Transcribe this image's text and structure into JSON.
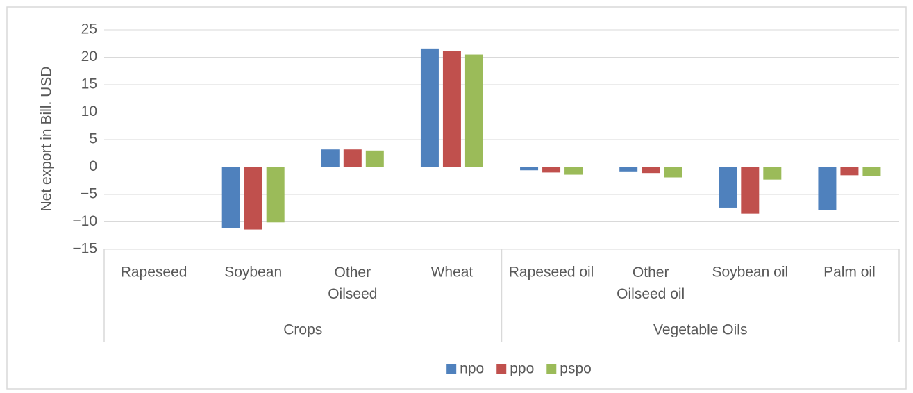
{
  "chart_data": {
    "type": "bar",
    "y_label": "Net export in Bill. USD",
    "groups": [
      {
        "name": "Crops",
        "categories": [
          "Rapeseed",
          "Soybean",
          "Other Oilseed",
          "Wheat"
        ]
      },
      {
        "name": "Vegetable Oils",
        "categories": [
          "Rapeseed oil",
          "Other Oilseed oil",
          "Soybean oil",
          "Palm oil"
        ]
      }
    ],
    "series": [
      {
        "name": "npo",
        "color": "#4f81bd",
        "values": [
          0,
          -11.2,
          3.2,
          21.6,
          -0.6,
          -0.8,
          -7.4,
          -7.8
        ]
      },
      {
        "name": "ppo",
        "color": "#c0504d",
        "values": [
          0,
          -11.4,
          3.2,
          21.2,
          -1.0,
          -1.1,
          -8.5,
          -1.5
        ]
      },
      {
        "name": "pspo",
        "color": "#9bbb59",
        "values": [
          0,
          -10.1,
          3.0,
          20.5,
          -1.4,
          -1.9,
          -2.3,
          -1.6
        ]
      }
    ],
    "ylim": [
      -15,
      25
    ],
    "yticks": [
      {
        "value": -15,
        "label": "−15"
      },
      {
        "value": -10,
        "label": "−10"
      },
      {
        "value": -5,
        "label": "−5"
      },
      0,
      5,
      10,
      15,
      20,
      25
    ],
    "grid": true,
    "legend": "bottom"
  }
}
